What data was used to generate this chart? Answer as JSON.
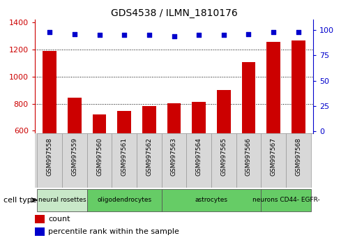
{
  "title": "GDS4538 / ILMN_1810176",
  "samples": [
    "GSM997558",
    "GSM997559",
    "GSM997560",
    "GSM997561",
    "GSM997562",
    "GSM997563",
    "GSM997564",
    "GSM997565",
    "GSM997566",
    "GSM997567",
    "GSM997568"
  ],
  "counts": [
    1190,
    845,
    718,
    748,
    780,
    805,
    812,
    900,
    1108,
    1258,
    1268
  ],
  "percentiles": [
    98,
    96,
    95,
    95,
    95,
    94,
    95,
    95,
    96,
    98,
    98
  ],
  "cell_types": [
    {
      "label": "neural rosettes",
      "start": 0,
      "end": 2,
      "color": "#c8e8c8"
    },
    {
      "label": "oligodendrocytes",
      "start": 2,
      "end": 5,
      "color": "#66cc66"
    },
    {
      "label": "astrocytes",
      "start": 5,
      "end": 9,
      "color": "#66cc66"
    },
    {
      "label": "neurons CD44- EGFR-",
      "start": 9,
      "end": 11,
      "color": "#66cc66"
    }
  ],
  "ylim_left": [
    580,
    1420
  ],
  "ylim_right": [
    -2,
    110
  ],
  "yticks_left": [
    600,
    800,
    1000,
    1200,
    1400
  ],
  "yticks_right": [
    0,
    25,
    50,
    75,
    100
  ],
  "bar_color": "#cc0000",
  "dot_color": "#0000cc",
  "bar_width": 0.55,
  "legend_count_color": "#cc0000",
  "legend_percentile_color": "#0000cc",
  "background_color": "#ffffff",
  "tick_label_bg": "#d8d8d8",
  "tick_label_border": "#999999"
}
